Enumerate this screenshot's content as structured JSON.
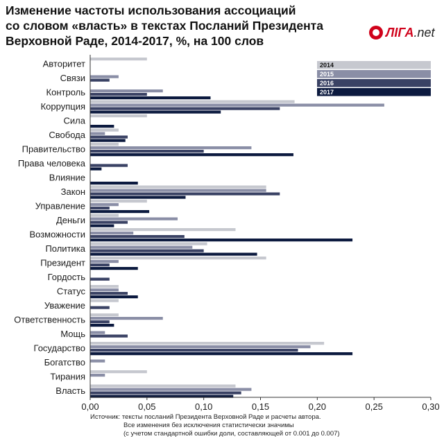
{
  "title_lines": [
    "Изменение частоты использования ассоциаций",
    "со словом «власть» в текстах Посланий Президента",
    "Верховной Раде, 2014-2017, %, на 100 слов"
  ],
  "logo": {
    "brand": "ЛIГА",
    "suffix": ".net"
  },
  "colors": {
    "2014": "#c6c8cf",
    "2015": "#8a8ea6",
    "2016": "#3a4264",
    "2017": "#0c1a3f"
  },
  "source_lines": [
    "Источник: тексты посланий Президента Верховной Раде и расчеты автора.",
    "Все изменения без исключения статистически значимы",
    "(с учетом стандартной ошибки доли, составляющей от 0.001 до 0.007)"
  ],
  "chart_data": {
    "type": "bar",
    "orientation": "horizontal",
    "xlim": [
      0,
      0.3
    ],
    "xticks": [
      "0,00",
      "0,05",
      "0,10",
      "0,15",
      "0,20",
      "0,25",
      "0,30"
    ],
    "legend_position": "top-right",
    "categories": [
      "Авторитет",
      "Связи",
      "Контроль",
      "Коррупция",
      "Сила",
      "Свобода",
      "Правительство",
      "Права человека",
      "Влияние",
      "Закон",
      "Управление",
      "Деньги",
      "Возможности",
      "Политика",
      "Президент",
      "Гордость",
      "Статус",
      "Уважение",
      "Ответственность",
      "Мощь",
      "Государство",
      "Богатство",
      "Тирания",
      "Власть"
    ],
    "series": [
      {
        "name": "2014",
        "values": [
          0.05,
          0,
          0,
          0.18,
          0.05,
          0.025,
          0.025,
          0,
          0,
          0.155,
          0.05,
          0.025,
          0.128,
          0.103,
          0.155,
          0,
          0.025,
          0.025,
          0.025,
          0,
          0.206,
          0,
          0.05,
          0.128
        ]
      },
      {
        "name": "2015",
        "values": [
          0,
          0.025,
          0.064,
          0.259,
          0,
          0.013,
          0.142,
          0,
          0,
          0.155,
          0.025,
          0.077,
          0.038,
          0.09,
          0.025,
          0,
          0.025,
          0,
          0.064,
          0.013,
          0.194,
          0.013,
          0.013,
          0.142
        ]
      },
      {
        "name": "2016",
        "values": [
          0,
          0.017,
          0.05,
          0.167,
          0,
          0.033,
          0.1,
          0.033,
          0,
          0.167,
          0.017,
          0.033,
          0.083,
          0.1,
          0.017,
          0.017,
          0.033,
          0.017,
          0.017,
          0.033,
          0.183,
          0,
          0,
          0.133
        ]
      },
      {
        "name": "2017",
        "values": [
          0,
          0,
          0.106,
          0.115,
          0.021,
          0.031,
          0.179,
          0.01,
          0.042,
          0.084,
          0.052,
          0.021,
          0.231,
          0.147,
          0.042,
          0,
          0.042,
          0,
          0.021,
          0,
          0.231,
          0,
          0,
          0.126
        ]
      }
    ]
  }
}
